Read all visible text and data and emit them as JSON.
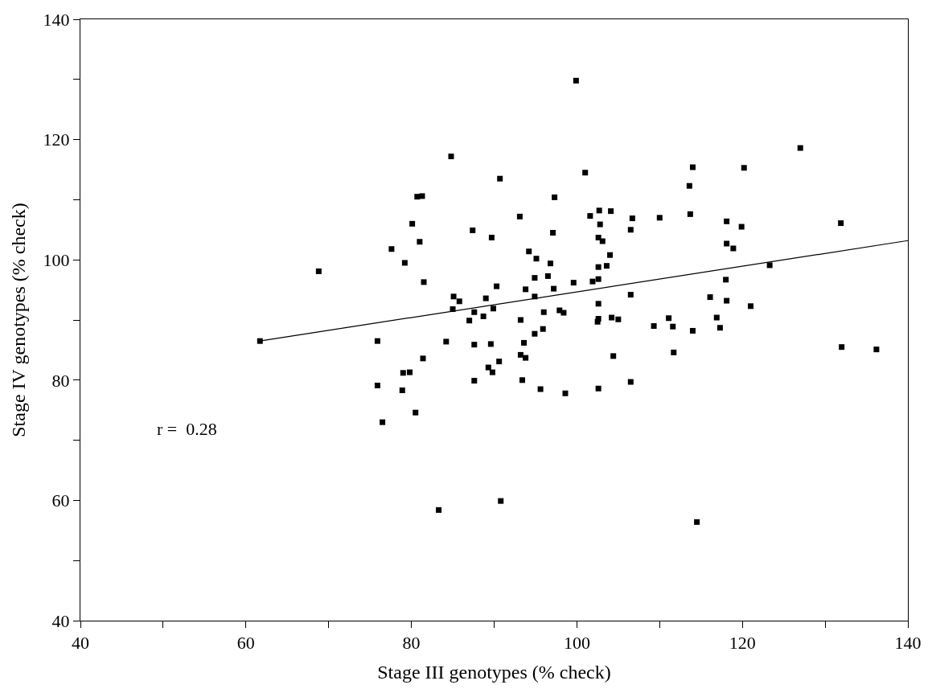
{
  "chart_data": {
    "type": "scatter",
    "xlabel": "Stage III genotypes (% check)",
    "ylabel": "Stage IV genotypes (% check)",
    "xlim": [
      40,
      140
    ],
    "ylim": [
      40,
      140
    ],
    "xticks": [
      40,
      {
        "value": 50,
        "label": null
      },
      60,
      {
        "value": 70,
        "label": null
      },
      80,
      {
        "value": 90,
        "label": null
      },
      100,
      {
        "value": 110,
        "label": null
      },
      120,
      {
        "value": 130,
        "label": null
      },
      140
    ],
    "yticks": [
      40,
      {
        "value": 50,
        "label": null
      },
      60,
      {
        "value": 70,
        "label": null
      },
      80,
      {
        "value": 90,
        "label": null
      },
      100,
      {
        "value": 110,
        "label": null
      },
      120,
      {
        "value": 130,
        "label": null
      },
      140
    ],
    "marker": "square",
    "annotations": [
      "r =  0.28"
    ],
    "series": [
      {
        "color": "#000000",
        "x": [
          84.8,
          80.7,
          81.3,
          80.1,
          87.4,
          81.0,
          77.6,
          79.2,
          68.8,
          81.5,
          85.1,
          85.8,
          85.0,
          87.6,
          87.0,
          61.7,
          75.9,
          84.2,
          87.6,
          81.4,
          79.0,
          79.8,
          75.9,
          78.9,
          87.6,
          90.7,
          101.0,
          114.0,
          113.6,
          97.3,
          93.1,
          101.6,
          102.7,
          104.1,
          106.7,
          110.0,
          113.7,
          106.5,
          102.8,
          97.1,
          89.7,
          102.6,
          103.1,
          94.2,
          95.1,
          96.8,
          104.0,
          102.6,
          103.6,
          94.9,
          96.5,
          99.6,
          101.9,
          102.6,
          90.3,
          93.8,
          97.2,
          89.0,
          94.9,
          106.5,
          116.1,
          89.9,
          88.7,
          102.6,
          97.9,
          98.4,
          96.0,
          93.2,
          102.6,
          102.5,
          104.2,
          105.0,
          111.1,
          116.9,
          109.3,
          111.6,
          114.0,
          117.3,
          95.9,
          94.9,
          89.6,
          93.6,
          90.6,
          93.2,
          93.8,
          89.3,
          89.8,
          104.4,
          111.7,
          93.4,
          95.6,
          98.6,
          102.6,
          106.5,
          127.0,
          120.2,
          118.1,
          119.9,
          131.9,
          118.1,
          118.9,
          123.3,
          118.0,
          118.1,
          121.0,
          132.0,
          136.2,
          99.9,
          76.5,
          80.5,
          83.3,
          90.8,
          114.5
        ],
        "values": [
          117.2,
          110.5,
          110.6,
          106.0,
          104.9,
          103.0,
          101.8,
          99.5,
          98.1,
          96.3,
          93.9,
          93.1,
          91.8,
          91.3,
          89.9,
          86.5,
          86.5,
          86.4,
          85.9,
          83.6,
          81.2,
          81.3,
          79.1,
          78.3,
          79.9,
          113.5,
          114.5,
          115.4,
          112.3,
          110.4,
          107.2,
          107.3,
          108.2,
          108.1,
          106.9,
          107.0,
          107.6,
          105.0,
          105.9,
          104.5,
          103.7,
          103.7,
          103.1,
          101.4,
          100.2,
          99.4,
          100.8,
          98.8,
          99.0,
          97.0,
          97.3,
          96.2,
          96.4,
          96.8,
          95.6,
          95.1,
          95.2,
          93.6,
          93.9,
          94.2,
          93.8,
          91.9,
          90.6,
          92.7,
          91.6,
          91.2,
          91.3,
          90.0,
          90.2,
          89.7,
          90.4,
          90.1,
          90.3,
          90.4,
          89.0,
          88.9,
          88.2,
          88.7,
          88.5,
          87.7,
          86.0,
          86.2,
          83.1,
          84.2,
          83.7,
          82.1,
          81.3,
          84.0,
          84.6,
          80.0,
          78.5,
          77.8,
          78.6,
          79.7,
          118.6,
          115.3,
          106.4,
          105.5,
          106.1,
          102.7,
          101.9,
          99.1,
          96.7,
          93.2,
          92.3,
          85.5,
          85.1,
          129.8,
          73.0,
          74.6,
          58.4,
          59.9,
          56.4
        ]
      },
      {
        "type": "line",
        "color": "#000000",
        "marker": "none",
        "line_style": "solid",
        "x": [
          61.7,
          140
        ],
        "values": [
          86.5,
          103.2
        ]
      }
    ]
  }
}
